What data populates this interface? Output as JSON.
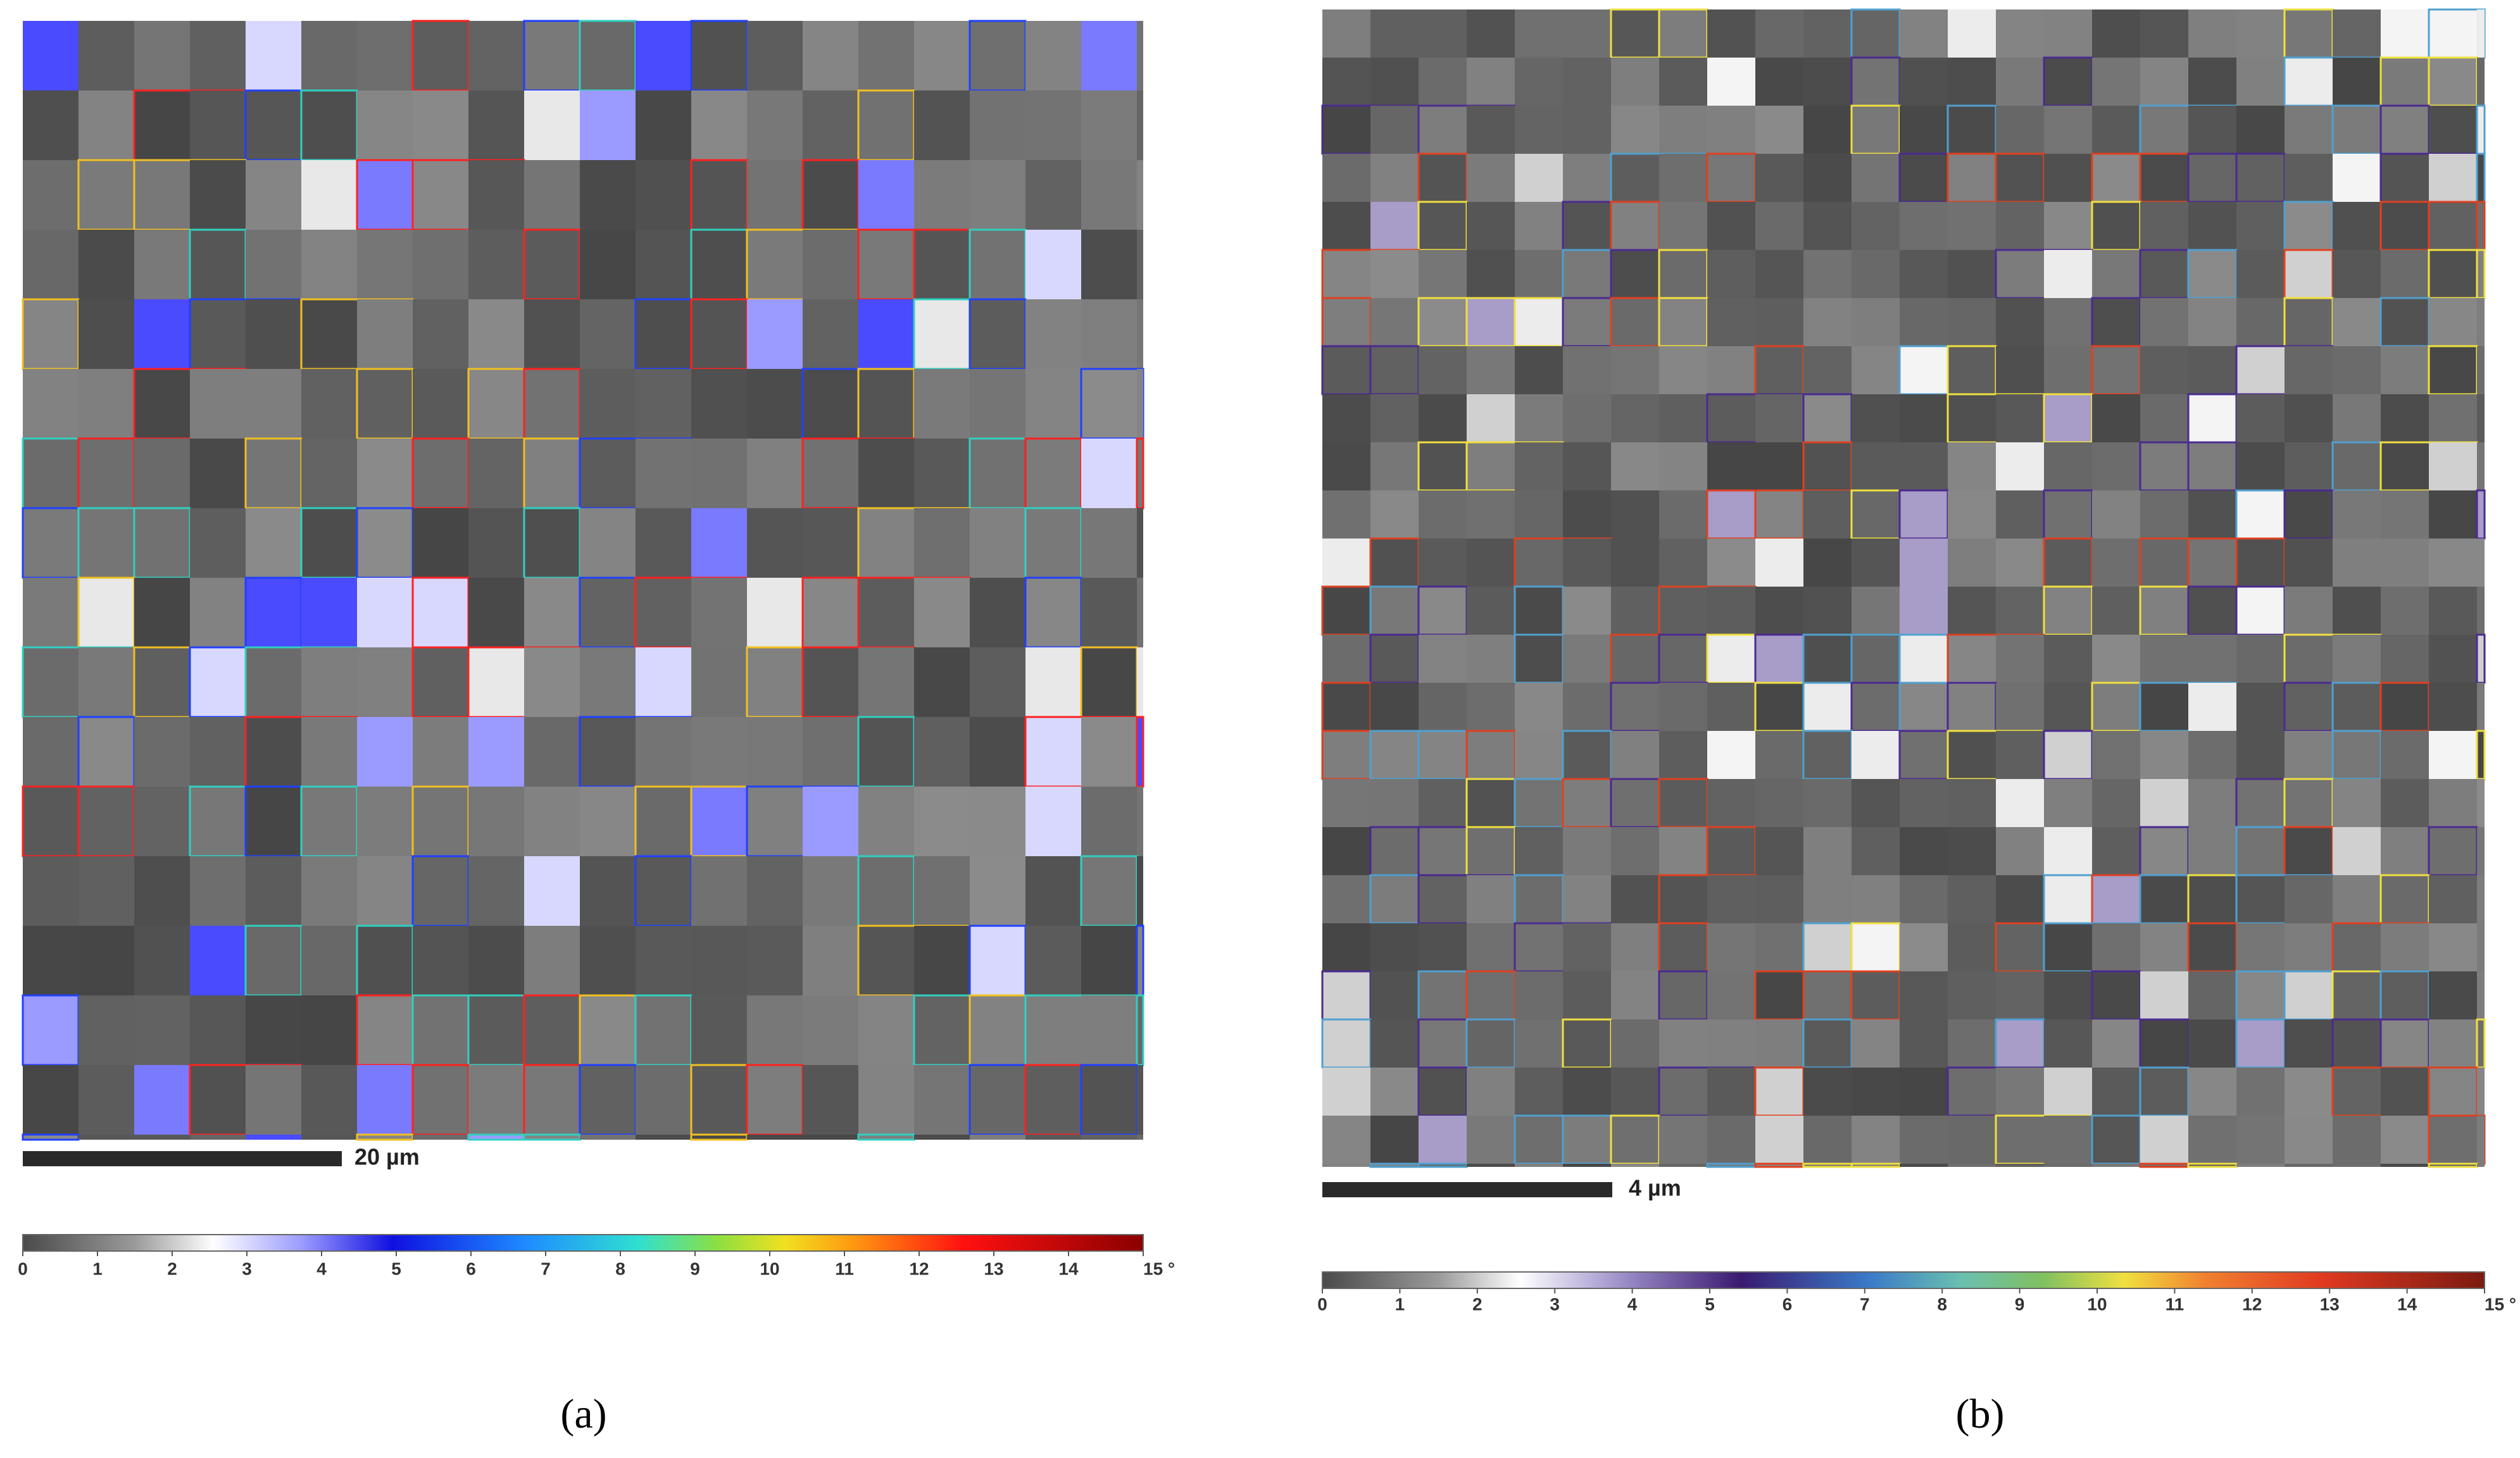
{
  "panels": [
    {
      "label": "(a)",
      "scale_bar": "20 µm",
      "colorbar": {
        "lim": [
          0,
          15
        ],
        "ticks": [
          0,
          1,
          2,
          3,
          4,
          5,
          6,
          7,
          8,
          9,
          10,
          11,
          12,
          13,
          14,
          {
            "value": 15,
            "label": "15 °"
          }
        ]
      }
    },
    {
      "label": "(b)",
      "scale_bar": "4 µm",
      "colorbar": {
        "lim": [
          0,
          15
        ],
        "ticks": [
          0,
          1,
          2,
          3,
          4,
          5,
          6,
          7,
          8,
          9,
          10,
          11,
          12,
          13,
          14,
          {
            "value": 15,
            "label": "15 °"
          }
        ]
      }
    }
  ]
}
